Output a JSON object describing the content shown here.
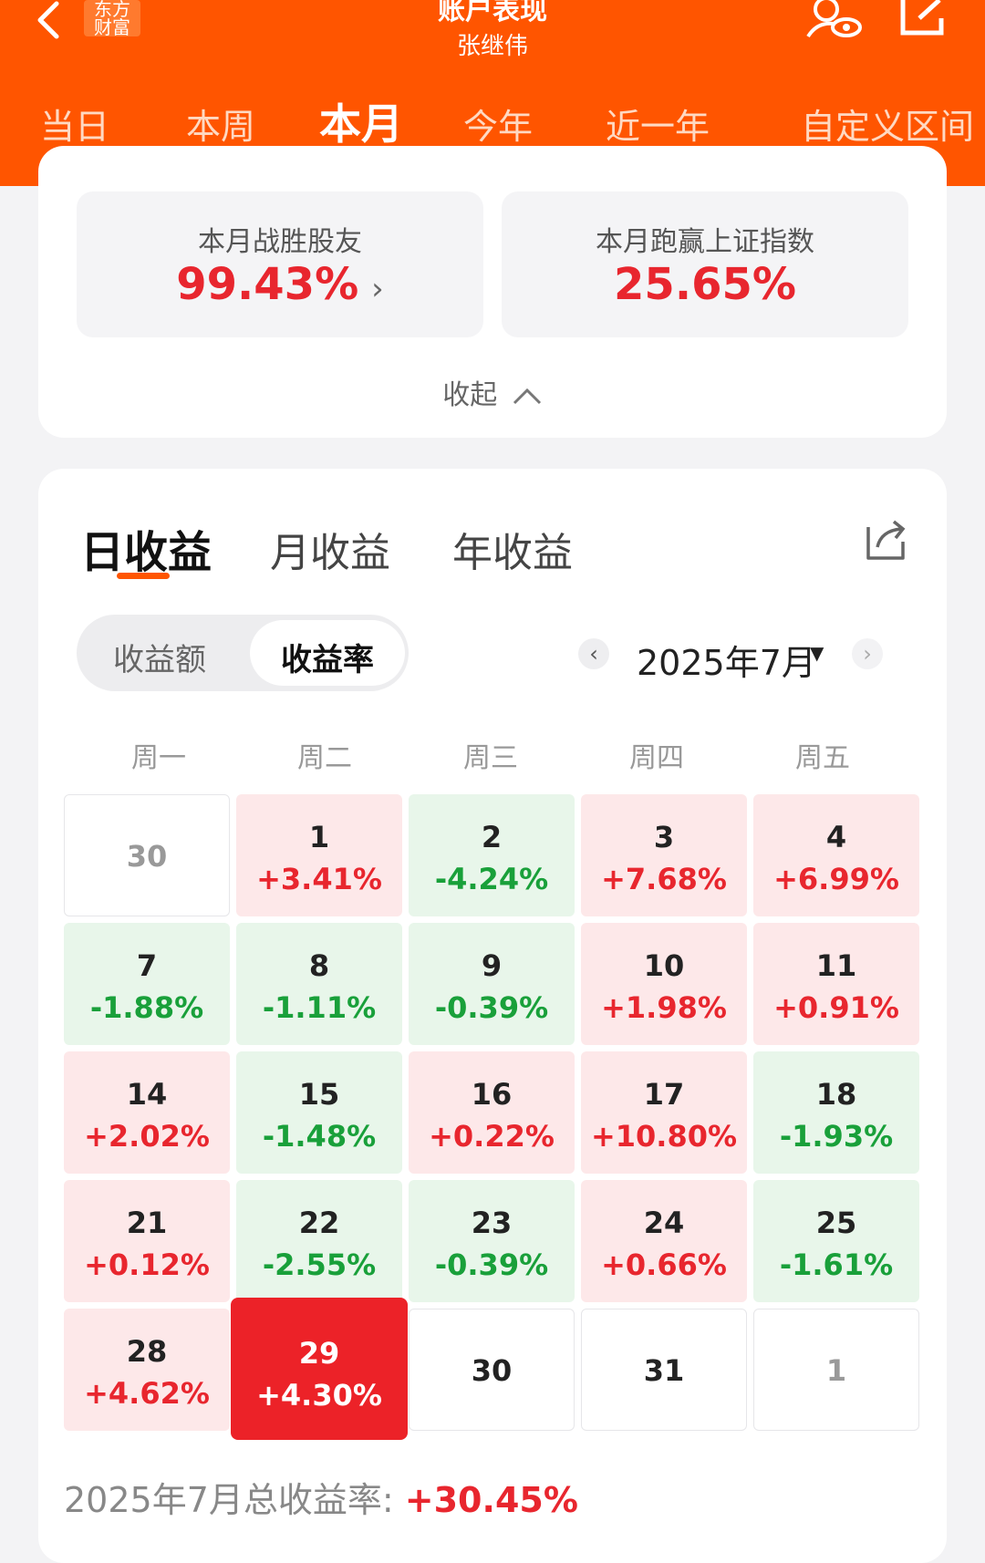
{
  "header": {
    "logo_lines": [
      "东方",
      "财富"
    ],
    "title": "账户表现",
    "account_name": "张继伟",
    "tabs": [
      {
        "label": "当日"
      },
      {
        "label": "本周"
      },
      {
        "label": "本月",
        "active": true
      },
      {
        "label": "今年"
      },
      {
        "label": "近一年"
      },
      {
        "label": "自定义区间"
      }
    ],
    "icons": {
      "back": "back-arrow-icon",
      "privacy": "user-eye-icon",
      "share": "share-icon"
    },
    "bg_color": "#ff5500"
  },
  "summary": {
    "beat_label": "本月战胜股友",
    "beat_value": "99.43%",
    "outperform_label": "本月跑赢上证指数",
    "outperform_value": "25.65%",
    "collapse_label": "收起"
  },
  "returns": {
    "tabs": [
      {
        "label": "日收益",
        "active": true
      },
      {
        "label": "月收益"
      },
      {
        "label": "年收益"
      }
    ],
    "toggle": {
      "amount": "收益额",
      "rate": "收益率",
      "selected": "rate"
    },
    "month_label": "2025年7月",
    "weekdays": [
      "周一",
      "周二",
      "周三",
      "周四",
      "周五"
    ],
    "cells": [
      {
        "day": "30",
        "pct": "",
        "type": "empty-muted"
      },
      {
        "day": "1",
        "pct": "+3.41%",
        "type": "up"
      },
      {
        "day": "2",
        "pct": "-4.24%",
        "type": "down"
      },
      {
        "day": "3",
        "pct": "+7.68%",
        "type": "up"
      },
      {
        "day": "4",
        "pct": "+6.99%",
        "type": "up"
      },
      {
        "day": "7",
        "pct": "-1.88%",
        "type": "down"
      },
      {
        "day": "8",
        "pct": "-1.11%",
        "type": "down"
      },
      {
        "day": "9",
        "pct": "-0.39%",
        "type": "down"
      },
      {
        "day": "10",
        "pct": "+1.98%",
        "type": "up"
      },
      {
        "day": "11",
        "pct": "+0.91%",
        "type": "up"
      },
      {
        "day": "14",
        "pct": "+2.02%",
        "type": "up"
      },
      {
        "day": "15",
        "pct": "-1.48%",
        "type": "down"
      },
      {
        "day": "16",
        "pct": "+0.22%",
        "type": "up"
      },
      {
        "day": "17",
        "pct": "+10.80%",
        "type": "up"
      },
      {
        "day": "18",
        "pct": "-1.93%",
        "type": "down"
      },
      {
        "day": "21",
        "pct": "+0.12%",
        "type": "up"
      },
      {
        "day": "22",
        "pct": "-2.55%",
        "type": "down"
      },
      {
        "day": "23",
        "pct": "-0.39%",
        "type": "down"
      },
      {
        "day": "24",
        "pct": "+0.66%",
        "type": "up"
      },
      {
        "day": "25",
        "pct": "-1.61%",
        "type": "down"
      },
      {
        "day": "28",
        "pct": "+4.62%",
        "type": "up"
      },
      {
        "day": "29",
        "pct": "+4.30%",
        "type": "selected"
      },
      {
        "day": "30",
        "pct": "",
        "type": "empty"
      },
      {
        "day": "31",
        "pct": "",
        "type": "empty"
      },
      {
        "day": "1",
        "pct": "",
        "type": "empty-muted"
      }
    ],
    "total_label": "2025年7月总收益率: ",
    "total_value": "+30.45%",
    "colors": {
      "up": "#e8262e",
      "down": "#19a03a",
      "selected_bg": "#ec2228"
    }
  }
}
